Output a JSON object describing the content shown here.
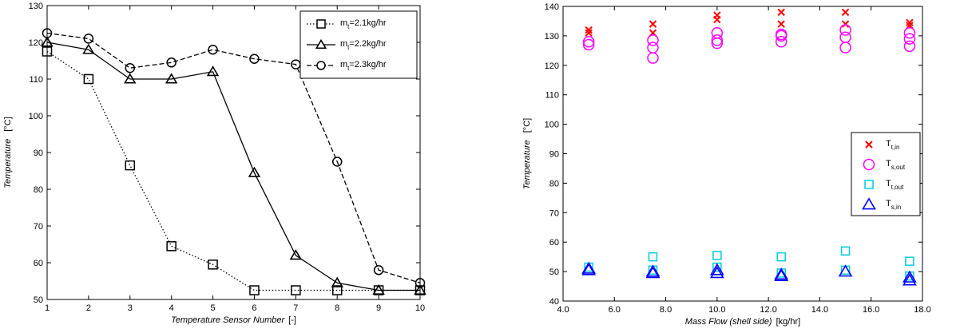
{
  "chart_data": [
    {
      "type": "line",
      "title": "",
      "xlabel": "Temperature Sensor Number",
      "xunit": "[-]",
      "ylabel": "Temperature",
      "yunit": "[°C]",
      "xlim": [
        1,
        10
      ],
      "ylim": [
        50,
        130
      ],
      "xticks": [
        1,
        2,
        3,
        4,
        5,
        6,
        7,
        8,
        9,
        10
      ],
      "yticks": [
        50,
        60,
        70,
        80,
        90,
        100,
        110,
        120,
        130
      ],
      "grid": false,
      "legend_position": "top-right",
      "x": [
        1,
        2,
        3,
        4,
        5,
        6,
        7,
        8,
        9,
        10
      ],
      "series": [
        {
          "legend_main": "m",
          "legend_sub": "t",
          "legend_rest": "=2.1kg/hr",
          "marker": "square",
          "linestyle": "dotted",
          "values": [
            117.5,
            110,
            86.5,
            64.5,
            59.5,
            52.5,
            52.5,
            52.5,
            52.5,
            52.5
          ]
        },
        {
          "legend_main": "m",
          "legend_sub": "t",
          "legend_rest": "=2.2kg/hr",
          "marker": "triangle",
          "linestyle": "solid",
          "values": [
            120,
            118,
            110,
            110,
            112,
            84.5,
            62,
            54.5,
            52.5,
            52.5
          ]
        },
        {
          "legend_main": "m",
          "legend_sub": "t",
          "legend_rest": "=2.3kg/hr",
          "marker": "circle",
          "linestyle": "dashed",
          "values": [
            122.5,
            121,
            113,
            114.5,
            118,
            115.5,
            114,
            87.5,
            58,
            54.5
          ]
        }
      ]
    },
    {
      "type": "scatter",
      "title": "",
      "xlabel": "Mass Flow (shell side)",
      "xunit": "[kg/hr]",
      "ylabel": "Temperature",
      "yunit": "[°C]",
      "xlim": [
        4,
        18
      ],
      "ylim": [
        40,
        140
      ],
      "xticks": [
        "4.0",
        "6.0",
        "8.0",
        "10.0",
        "12.0",
        "14.0",
        "16.0",
        "18.0"
      ],
      "yticks": [
        40,
        50,
        60,
        70,
        80,
        90,
        100,
        110,
        120,
        130,
        140
      ],
      "grid": false,
      "legend_position": "right-middle",
      "series": [
        {
          "legend_main": "T",
          "legend_sub": "t,in",
          "marker": "x",
          "color": "#ff0000",
          "points": [
            [
              5,
              132
            ],
            [
              5,
              131
            ],
            [
              7.5,
              134
            ],
            [
              7.5,
              131
            ],
            [
              10,
              137
            ],
            [
              10,
              135.5
            ],
            [
              12.5,
              138
            ],
            [
              12.5,
              134
            ],
            [
              15,
              138
            ],
            [
              15,
              134
            ],
            [
              17.5,
              134.5
            ],
            [
              17.5,
              133.5
            ]
          ]
        },
        {
          "legend_main": "T",
          "legend_sub": "s,out",
          "marker": "circle",
          "color": "#ff00ff",
          "points": [
            [
              5,
              128
            ],
            [
              5,
              127
            ],
            [
              7.5,
              128.5
            ],
            [
              7.5,
              126
            ],
            [
              7.5,
              122.5
            ],
            [
              10,
              131
            ],
            [
              10,
              128.5
            ],
            [
              10,
              127.5
            ],
            [
              12.5,
              130.5
            ],
            [
              12.5,
              130
            ],
            [
              12.5,
              128
            ],
            [
              15,
              132
            ],
            [
              15,
              129.5
            ],
            [
              15,
              126
            ],
            [
              17.5,
              131
            ],
            [
              17.5,
              129
            ],
            [
              17.5,
              126.5
            ]
          ]
        },
        {
          "legend_main": "T",
          "legend_sub": "t,out",
          "marker": "square",
          "color": "#00ccdd",
          "points": [
            [
              5,
              51.5
            ],
            [
              7.5,
              55
            ],
            [
              7.5,
              50.5
            ],
            [
              10,
              55.5
            ],
            [
              10,
              51.5
            ],
            [
              12.5,
              55
            ],
            [
              12.5,
              49.5
            ],
            [
              15,
              57
            ],
            [
              15,
              50.5
            ],
            [
              17.5,
              53.5
            ],
            [
              17.5,
              48.5
            ]
          ]
        },
        {
          "legend_main": "T",
          "legend_sub": "s,in",
          "marker": "triangle",
          "color": "#0000ff",
          "points": [
            [
              5,
              51
            ],
            [
              5,
              50.5
            ],
            [
              7.5,
              50
            ],
            [
              7.5,
              49.5
            ],
            [
              10,
              50.5
            ],
            [
              10,
              49.5
            ],
            [
              12.5,
              49
            ],
            [
              12.5,
              48.5
            ],
            [
              15,
              50
            ],
            [
              17.5,
              48
            ],
            [
              17.5,
              47
            ]
          ]
        }
      ]
    }
  ]
}
